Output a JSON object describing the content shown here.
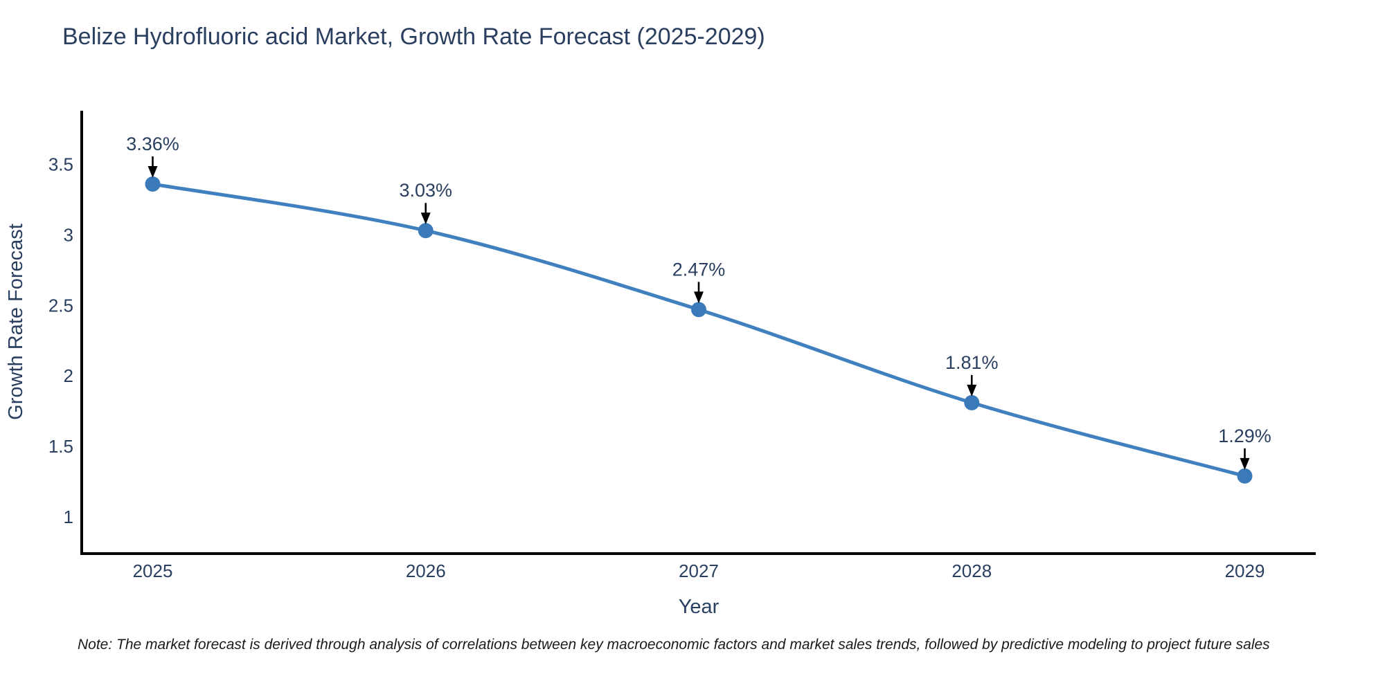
{
  "title": "Belize Hydrofluoric acid Market, Growth Rate Forecast (2025-2029)",
  "note": "Note: The market forecast is derived through analysis of correlations between key macroeconomic factors and market sales trends, followed by predictive modeling to project future sales",
  "chart_data": {
    "type": "line",
    "title": "Belize Hydrofluoric acid Market, Growth Rate Forecast (2025-2029)",
    "xlabel": "Year",
    "ylabel": "Growth Rate Forecast",
    "categories": [
      "2025",
      "2026",
      "2027",
      "2028",
      "2029"
    ],
    "x": [
      2025,
      2026,
      2027,
      2028,
      2029
    ],
    "values": [
      3.36,
      3.03,
      2.47,
      1.81,
      1.29
    ],
    "point_labels": [
      "3.36%",
      "3.03%",
      "2.47%",
      "1.81%",
      "1.29%"
    ],
    "xlim": [
      2024.74,
      2029.26
    ],
    "ylim": [
      0.74,
      3.88
    ],
    "yticks": [
      1,
      1.5,
      2,
      2.5,
      3,
      3.5
    ],
    "ytick_labels": [
      "1",
      "1.5",
      "2",
      "2.5",
      "3",
      "3.5"
    ],
    "grid": false,
    "legend": "none",
    "marker": "circle",
    "annotation_style": "arrow-down",
    "colors": {
      "line": "#4080bf",
      "marker": "#3a7ab8",
      "axis": "#000000",
      "text": "#2a3f5f",
      "annotation_text": "#2a3f5f",
      "annotation_arrow": "#000000",
      "note_text": "#1a1a1a"
    }
  }
}
